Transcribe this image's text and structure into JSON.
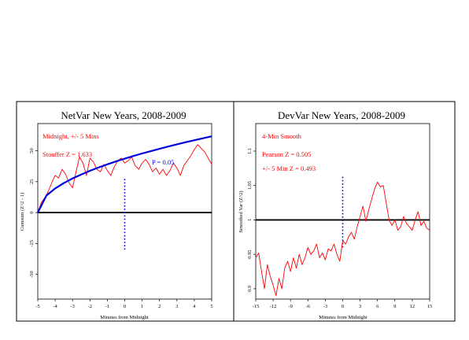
{
  "chart_data": [
    {
      "type": "line",
      "title": "NetVar New Years, 2008-2009",
      "xlabel": "Minutes from Midnight",
      "ylabel": "Cumsum (Z^2 - 1)",
      "xlim": [
        -5,
        5
      ],
      "ylim": [
        -70,
        72
      ],
      "xticks": [
        -5,
        -4,
        -3,
        -2,
        -1,
        0,
        1,
        2,
        3,
        4,
        5
      ],
      "xtick_labels": [
        "-5",
        "-4",
        "-3",
        "-2",
        "-1",
        "0",
        "1",
        "2",
        "3",
        "4",
        "5"
      ],
      "yticks": [
        50,
        25,
        0,
        -25,
        -50
      ],
      "ytick_labels": [
        "50",
        "25",
        "0",
        "-25",
        "-50"
      ],
      "annotations": [
        "Midnight, +/- 5 Mins",
        "Stouffer Z = 1.633",
        "P = 0.05"
      ],
      "series": [
        {
          "role": "cumulative-deviation",
          "color": "#ff0000",
          "x": [
            -5,
            -4.8,
            -4.6,
            -4.4,
            -4.2,
            -4.0,
            -3.8,
            -3.6,
            -3.4,
            -3.2,
            -3.0,
            -2.8,
            -2.6,
            -2.4,
            -2.2,
            -2.0,
            -1.8,
            -1.6,
            -1.4,
            -1.2,
            -1.0,
            -0.8,
            -0.6,
            -0.4,
            -0.2,
            0,
            0.2,
            0.4,
            0.6,
            0.8,
            1.0,
            1.2,
            1.4,
            1.6,
            1.8,
            2.0,
            2.2,
            2.4,
            2.6,
            2.8,
            3.0,
            3.2,
            3.4,
            3.6,
            3.8,
            4.0,
            4.2,
            4.4,
            4.6,
            4.8,
            5.0
          ],
          "y": [
            0,
            8,
            12,
            17,
            24,
            30,
            28,
            35,
            31,
            24,
            20,
            33,
            45,
            40,
            30,
            44,
            41,
            35,
            33,
            39,
            34,
            30,
            37,
            42,
            44,
            40,
            42,
            45,
            38,
            35,
            40,
            43,
            39,
            33,
            36,
            31,
            35,
            30,
            34,
            40,
            36,
            30,
            38,
            42,
            46,
            51,
            55,
            52,
            49,
            44,
            39
          ]
        },
        {
          "role": "p-0.05-envelope",
          "color": "#0000dd",
          "x": [
            -5,
            -4.5,
            -4,
            -3.5,
            -3,
            -2.5,
            -2,
            -1.5,
            -1,
            -0.5,
            0,
            0.5,
            1,
            1.5,
            2,
            2.5,
            3,
            3.5,
            4,
            4.5,
            5
          ],
          "y": [
            0,
            13.8,
            19.5,
            23.9,
            27.6,
            30.8,
            33.8,
            36.5,
            39.0,
            41.4,
            43.6,
            45.8,
            47.8,
            49.7,
            51.6,
            53.4,
            55.2,
            56.9,
            58.5,
            60.1,
            61.7
          ]
        }
      ],
      "reference_lines": [
        {
          "axis": "y",
          "value": 0,
          "style": "solid",
          "color": "#000000"
        },
        {
          "axis": "x",
          "value": 0,
          "from": -30,
          "to": 28,
          "style": "dotted",
          "color": "#0000dd"
        }
      ],
      "grid": false,
      "legend": "none"
    },
    {
      "type": "line",
      "title": "DevVar New Years, 2008-2009",
      "xlabel": "Minutes from Midnight",
      "ylabel": "Smoothed Var (Z^2)",
      "xlim": [
        -15,
        15
      ],
      "ylim": [
        0.885,
        1.14
      ],
      "xticks": [
        -15,
        -12,
        -9,
        -6,
        -3,
        0,
        3,
        6,
        9,
        12,
        15
      ],
      "xtick_labels": [
        "-15",
        "-12",
        "-9",
        "-6",
        "-3",
        "0",
        "3",
        "6",
        "9",
        "12",
        "15"
      ],
      "yticks": [
        1.1,
        1.05,
        1.0,
        0.95,
        0.9
      ],
      "ytick_labels": [
        "1.1",
        "1.05",
        "1",
        "0.95",
        "0.9"
      ],
      "annotations": [
        "4-Min Smooth",
        "Pearson Z = 0.505",
        "+/- 5 Min Z = 0.493"
      ],
      "series": [
        {
          "role": "smoothed-variance",
          "color": "#ff0000",
          "x": [
            -15,
            -14.5,
            -14,
            -13.5,
            -13,
            -12.5,
            -12,
            -11.5,
            -11,
            -10.5,
            -10,
            -9.5,
            -9,
            -8.5,
            -8,
            -7.5,
            -7,
            -6.5,
            -6,
            -5.5,
            -5,
            -4.5,
            -4,
            -3.5,
            -3,
            -2.5,
            -2,
            -1.5,
            -1,
            -0.5,
            0,
            0.5,
            1,
            1.5,
            2,
            2.5,
            3,
            3.5,
            4,
            4.5,
            5,
            5.5,
            6,
            6.5,
            7,
            7.5,
            8,
            8.5,
            9,
            9.5,
            10,
            10.5,
            11,
            11.5,
            12,
            12.5,
            13,
            13.5,
            14,
            14.5,
            15
          ],
          "y": [
            0.945,
            0.952,
            0.925,
            0.9,
            0.935,
            0.918,
            0.905,
            0.89,
            0.915,
            0.9,
            0.93,
            0.94,
            0.925,
            0.945,
            0.93,
            0.95,
            0.935,
            0.945,
            0.96,
            0.95,
            0.955,
            0.965,
            0.945,
            0.952,
            0.942,
            0.958,
            0.955,
            0.965,
            0.95,
            0.94,
            0.97,
            0.965,
            0.975,
            0.982,
            0.972,
            0.99,
            1.005,
            1.02,
            0.998,
            1.015,
            1.03,
            1.045,
            1.055,
            1.048,
            1.05,
            1.025,
            1.0,
            0.992,
            1.0,
            0.985,
            0.99,
            1.005,
            0.995,
            0.99,
            0.985,
            1.0,
            1.012,
            0.992,
            0.998,
            0.988,
            0.985
          ]
        }
      ],
      "reference_lines": [
        {
          "axis": "y",
          "value": 1.0,
          "style": "solid",
          "color": "#000000"
        },
        {
          "axis": "x",
          "value": 0,
          "from": 0.96,
          "to": 1.063,
          "style": "dotted",
          "color": "#0000dd"
        }
      ],
      "grid": false,
      "legend": "none"
    }
  ]
}
